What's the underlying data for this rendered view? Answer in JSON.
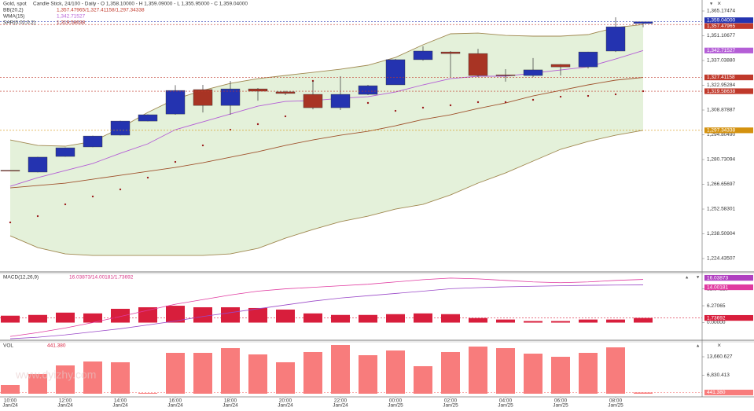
{
  "chart_data": [
    {
      "type": "candlestick",
      "title": "Gold, spot",
      "subtitle": "Candle Stick, 24/100 - Daily - O 1,358.10000 - H 1,359.09000 - L 1,355.95000 - C 1,359.04000",
      "watermark": "www.dyizhy.com",
      "categories": [
        "10:00",
        null,
        "12:00",
        null,
        "14:00",
        null,
        "16:00",
        null,
        "18:00",
        null,
        "20:00",
        null,
        "22:00",
        null,
        "00:00",
        null,
        "02:00",
        null,
        "04:00",
        null,
        "06:00",
        null,
        "08:00",
        null
      ],
      "category_dates": [
        "Jan/24",
        null,
        "Jan/24",
        null,
        "Jan/24",
        null,
        "Jan/24",
        null,
        "Jan/24",
        null,
        "Jan/24",
        null,
        "Jan/24",
        null,
        "Jan/25",
        null,
        "Jan/25",
        null,
        "Jan/25",
        null,
        "Jan/25",
        null,
        "Jan/25",
        null
      ],
      "open": [
        1274.6,
        1273.6,
        1282.5,
        1287.9,
        1294.6,
        1302.6,
        1306.6,
        1320.5,
        1311.5,
        1320.9,
        1319.2,
        1317.8,
        1310.2,
        1317.8,
        1323.2,
        1337.5,
        1341.9,
        1341.0,
        1328.9,
        1328.5,
        1334.8,
        1333.4,
        1342.4,
        1358.1
      ],
      "high": [
        1274.7,
        1282.3,
        1287.6,
        1294.3,
        1302.8,
        1306.4,
        1323.0,
        1323.2,
        1325.4,
        1321.4,
        1319.8,
        1325.4,
        1328.1,
        1323.2,
        1337.9,
        1345.1,
        1342.4,
        1343.7,
        1332.1,
        1338.4,
        1335.0,
        1342.0,
        1361.6,
        1359.09
      ],
      "low": [
        1274.3,
        1273.4,
        1282.3,
        1287.7,
        1294.4,
        1302.4,
        1306.2,
        1307.5,
        1306.2,
        1314.2,
        1317.4,
        1309.3,
        1308.9,
        1317.4,
        1323.2,
        1337.0,
        1327.6,
        1327.6,
        1325.0,
        1327.6,
        1328.5,
        1332.5,
        1341.9,
        1355.95
      ],
      "close": [
        1274.4,
        1282.1,
        1287.4,
        1294.1,
        1302.6,
        1306.2,
        1320.0,
        1311.5,
        1320.9,
        1319.6,
        1318.3,
        1310.2,
        1317.8,
        1322.7,
        1337.5,
        1342.4,
        1341.0,
        1328.5,
        1328.5,
        1331.7,
        1333.4,
        1341.9,
        1356.2,
        1359.04
      ],
      "close_labels": [
        null,
        null,
        null,
        null,
        null,
        null,
        null,
        null,
        null,
        null,
        null,
        null,
        null,
        null,
        null,
        null,
        null,
        null,
        null,
        null,
        null,
        null,
        null,
        "1,359.04000"
      ],
      "up_color": "#2433b0",
      "down_color": "#a83424",
      "label_color": "#2433b0",
      "bands": {
        "name": "BB(20,2)",
        "legend_text": "1,357.47965/1,327.41158/1,297.34338",
        "fill": "#e4f1da",
        "legend_color": "#c0392b",
        "upper": {
          "color": "#a08850",
          "box_color": "#c0392b",
          "values": [
            1291.9,
            1288.77,
            1288.33,
            1291.01,
            1298.6,
            1307.54,
            1315.13,
            1320.05,
            1324.07,
            1326.75,
            1328.54,
            1330.32,
            1332.11,
            1334.35,
            1338.81,
            1345.96,
            1352.22,
            1352.66,
            1351.32,
            1350.88,
            1350.88,
            1351.77,
            1355.79,
            1357.47965
          ],
          "value_labels": [
            null,
            null,
            null,
            null,
            null,
            null,
            null,
            null,
            null,
            null,
            null,
            null,
            null,
            null,
            null,
            null,
            null,
            null,
            null,
            null,
            null,
            null,
            null,
            "1,357.47965"
          ]
        },
        "middle": {
          "color": "#a0522d",
          "box_color": "#c0392b",
          "values": [
            1264.64,
            1265.99,
            1267.33,
            1269.56,
            1271.79,
            1274.03,
            1276.26,
            1278.94,
            1282.07,
            1285.2,
            1288.77,
            1291.9,
            1294.58,
            1296.81,
            1299.94,
            1303.52,
            1306.2,
            1309.77,
            1312.9,
            1316.92,
            1320.05,
            1323.18,
            1325.86,
            1327.41158
          ],
          "value_labels": [
            null,
            null,
            null,
            null,
            null,
            null,
            null,
            null,
            null,
            null,
            null,
            null,
            null,
            null,
            null,
            null,
            null,
            null,
            null,
            null,
            null,
            null,
            null,
            "1,327.41158"
          ]
        },
        "lower": {
          "color": "#a08850",
          "box_color": "#d4920f",
          "values": [
            1237.39,
            1230.69,
            1227.11,
            1226.22,
            1226.22,
            1226.22,
            1226.22,
            1226.22,
            1227.11,
            1230.24,
            1236.05,
            1240.96,
            1245.43,
            1248.56,
            1252.58,
            1255.26,
            1260.62,
            1267.33,
            1273.13,
            1279.84,
            1286.54,
            1291.01,
            1294.58,
            1297.34338
          ],
          "value_labels": [
            null,
            null,
            null,
            null,
            null,
            null,
            null,
            null,
            null,
            null,
            null,
            null,
            null,
            null,
            null,
            null,
            null,
            null,
            null,
            null,
            null,
            null,
            null,
            "1,297.34338"
          ]
        }
      },
      "series": [
        {
          "name": "WMA(15)",
          "legend_text": "1,342.71527",
          "style": "line",
          "color": "#b45ed6",
          "values": [
            1265.54,
            1270.45,
            1274.47,
            1278.5,
            1284.3,
            1289.67,
            1297.71,
            1302.18,
            1306.64,
            1311.11,
            1313.79,
            1314.24,
            1315.58,
            1316.47,
            1319.15,
            1323.18,
            1326.75,
            1328.09,
            1328.09,
            1329.88,
            1331.66,
            1333.45,
            1337.92,
            1342.71527
          ],
          "value_labels": [
            null,
            null,
            null,
            null,
            null,
            null,
            null,
            null,
            null,
            null,
            null,
            null,
            null,
            null,
            null,
            null,
            null,
            null,
            null,
            null,
            null,
            null,
            null,
            "1,342.71527"
          ]
        },
        {
          "name": "SAR(0.02,0.2)",
          "legend_text": "1,319.58638",
          "style": "dots",
          "color": "#9b1b1b",
          "box_color": "#c0392b",
          "values": [
            1244.99,
            1248.56,
            1255.26,
            1259.73,
            1263.75,
            1270.45,
            1279.39,
            1288.77,
            1297.71,
            1300.84,
            1305.3,
            1325.41,
            null,
            1312.9,
            1308.43,
            1310.22,
            1311.56,
            1313.35,
            1313.35,
            1314.69,
            1316.47,
            1316.92,
            1317.81,
            1319.58638
          ],
          "value_labels": [
            null,
            null,
            null,
            null,
            null,
            null,
            null,
            null,
            null,
            null,
            null,
            null,
            null,
            null,
            null,
            null,
            null,
            null,
            null,
            null,
            null,
            null,
            null,
            "1,319.58638"
          ]
        }
      ],
      "ylim": [
        1217.3,
        1371.43
      ],
      "yticks": [
        {
          "value": 1365.17474,
          "label": "1,365.17474"
        },
        {
          "value": 1351.10677,
          "label": "1,351.10677"
        },
        {
          "value": 1337.0388,
          "label": "1,337.03880"
        },
        {
          "value": 1322.95284,
          "label": "1,322.95284"
        },
        {
          "value": 1308.87887,
          "label": "1,308.87887"
        },
        {
          "value": 1294.8049,
          "label": "1,294.80490"
        },
        {
          "value": 1280.73094,
          "label": "1,280.73094"
        },
        {
          "value": 1266.65697,
          "label": "1,266.65697"
        },
        {
          "value": 1252.58301,
          "label": "1,252.58301"
        },
        {
          "value": 1238.50904,
          "label": "1,238.50904"
        },
        {
          "value": 1224.43507,
          "label": "1,224.43507"
        }
      ]
    },
    {
      "type": "macd",
      "title": "MACD(12,26,9)",
      "legend_text": "16.03873/14.00181/1.73692",
      "legend_color": "#d63384",
      "histogram": {
        "color": "#d81e3c",
        "box_color": "#d81e3c",
        "values": [
          2.57,
          2.85,
          3.71,
          3.42,
          5.13,
          5.7,
          6.27,
          5.7,
          5.7,
          5.42,
          4.85,
          3.42,
          2.85,
          2.85,
          3.14,
          3.42,
          3.14,
          1.71,
          1.14,
          0.57,
          0.57,
          1.14,
          1.14,
          1.73692
        ],
        "value_labels": [
          null,
          null,
          null,
          null,
          null,
          null,
          null,
          null,
          null,
          null,
          null,
          null,
          null,
          null,
          null,
          null,
          null,
          null,
          null,
          null,
          null,
          null,
          null,
          "1.73692"
        ]
      },
      "series": [
        {
          "color": "#e03aa0",
          "box_color": "#b040c0",
          "values": [
            -5.13,
            -3.71,
            -2.0,
            0.0,
            2.28,
            4.56,
            6.84,
            8.55,
            10.26,
            11.69,
            12.54,
            13.11,
            13.68,
            14.25,
            15.11,
            15.96,
            16.53,
            16.25,
            15.68,
            15.11,
            14.82,
            15.11,
            15.68,
            16.03873
          ],
          "value_labels": [
            null,
            null,
            null,
            null,
            null,
            null,
            null,
            null,
            null,
            null,
            null,
            null,
            null,
            null,
            null,
            null,
            null,
            null,
            null,
            null,
            null,
            null,
            null,
            "16.03873"
          ]
        },
        {
          "color": "#9a48c8",
          "box_color": "#e03aa0",
          "values": [
            -5.99,
            -5.42,
            -4.56,
            -3.42,
            -2.28,
            -0.86,
            0.57,
            2.28,
            3.71,
            5.13,
            6.56,
            7.98,
            9.12,
            9.98,
            10.83,
            11.69,
            12.6,
            13.0,
            13.3,
            13.5,
            13.7,
            13.85,
            13.95,
            14.00181
          ],
          "value_labels": [
            null,
            null,
            null,
            null,
            null,
            null,
            null,
            null,
            null,
            null,
            null,
            null,
            null,
            null,
            null,
            null,
            null,
            null,
            null,
            null,
            null,
            null,
            null,
            "14.00181"
          ]
        }
      ],
      "ylim": [
        -6.27,
        17.96
      ],
      "yticks": [
        12.54129,
        6.27065,
        {
          "value": 0,
          "label": "0.00000"
        }
      ]
    },
    {
      "type": "bar",
      "title": "VOL",
      "legend_text": "441.380",
      "legend_color": "#d81e3c",
      "color": "#f87c7c",
      "box_color": "#f87c7c",
      "values": [
        3198,
        7268,
        10465,
        11919,
        11628,
        291,
        15116,
        15116,
        16861,
        14535,
        11628,
        15407,
        18023,
        14244,
        15989,
        10175,
        15407,
        17442,
        16861,
        14826,
        13663,
        15116,
        17151,
        441.38
      ],
      "value_labels": [
        null,
        null,
        null,
        null,
        null,
        null,
        null,
        null,
        null,
        null,
        null,
        null,
        null,
        null,
        null,
        null,
        null,
        null,
        null,
        null,
        null,
        null,
        null,
        "441.380"
      ],
      "ylim": [
        -1163,
        18895
      ],
      "yticks": [
        {
          "value": 13660.627,
          "label": "13,660.627"
        },
        {
          "value": 6830.413,
          "label": "6,830.413"
        }
      ]
    }
  ]
}
